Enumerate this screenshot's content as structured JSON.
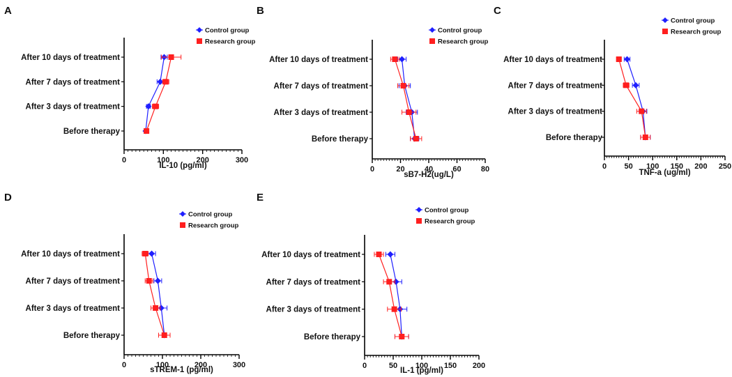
{
  "colors": {
    "control": "#1f1fff",
    "research": "#ff1f1f",
    "axis": "#000000"
  },
  "legend": {
    "control": "Control group",
    "research": "Research group"
  },
  "chart_data": [
    {
      "panel": "A",
      "type": "scatter",
      "orientation": "horizontal",
      "categories": [
        "After 10 days of treatment",
        "After 7 days of treatment",
        "After 3 days of treatment",
        "Before therapy"
      ],
      "xlabel": "IL-10 (pg/ml)",
      "xlim": [
        0,
        300
      ],
      "xticks": [
        0,
        100,
        200,
        300
      ],
      "legend_position": "top-right",
      "grid": false,
      "series": [
        {
          "name": "Control group",
          "marker": "diamond",
          "values": [
            102,
            92,
            62,
            55
          ],
          "errors": [
            8,
            8,
            5,
            4
          ]
        },
        {
          "name": "Research group",
          "marker": "square",
          "values": [
            120,
            106,
            80,
            57
          ],
          "errors": [
            25,
            8,
            8,
            5
          ]
        }
      ]
    },
    {
      "panel": "B",
      "type": "scatter",
      "orientation": "horizontal",
      "categories": [
        "After 10 days of treatment",
        "After 7 days of treatment",
        "After 3 days of treatment",
        "Before therapy"
      ],
      "xlabel": "sB7-H2(ug/L)",
      "xlim": [
        0,
        80
      ],
      "xticks": [
        0,
        20,
        40,
        60,
        80
      ],
      "legend_position": "top-right",
      "grid": false,
      "series": [
        {
          "name": "Control group",
          "marker": "diamond",
          "values": [
            21,
            23,
            28,
            30
          ],
          "errors": [
            3,
            4,
            4,
            3
          ]
        },
        {
          "name": "Research group",
          "marker": "square",
          "values": [
            16,
            22,
            26,
            31
          ],
          "errors": [
            3,
            4,
            5,
            4
          ]
        }
      ]
    },
    {
      "panel": "C",
      "type": "scatter",
      "orientation": "horizontal",
      "categories": [
        "After 10 days of treatment",
        "After 7 days of treatment",
        "After 3 days of treatment",
        "Before therapy"
      ],
      "xlabel": "TNF-a (ug/ml)",
      "xlim": [
        0,
        250
      ],
      "xticks": [
        0,
        50,
        100,
        150,
        200,
        250
      ],
      "legend_position": "top-right",
      "grid": false,
      "series": [
        {
          "name": "Control group",
          "marker": "diamond",
          "values": [
            47,
            65,
            80,
            85
          ],
          "errors": [
            6,
            7,
            8,
            10
          ]
        },
        {
          "name": "Research group",
          "marker": "square",
          "values": [
            30,
            45,
            77,
            85
          ],
          "errors": [
            5,
            6,
            10,
            10
          ]
        }
      ]
    },
    {
      "panel": "D",
      "type": "scatter",
      "orientation": "horizontal",
      "categories": [
        "After 10 days of treatment",
        "After 7 days of treatment",
        "After 3 days of treatment",
        "Before therapy"
      ],
      "xlabel": "sTREM-1 (pg/ml)",
      "xlim": [
        0,
        300
      ],
      "xticks": [
        0,
        100,
        200,
        300
      ],
      "legend_position": "top-right",
      "grid": false,
      "series": [
        {
          "name": "Control group",
          "marker": "diamond",
          "values": [
            72,
            88,
            97,
            105
          ],
          "errors": [
            10,
            10,
            15,
            15
          ]
        },
        {
          "name": "Research group",
          "marker": "square",
          "values": [
            55,
            65,
            82,
            105
          ],
          "errors": [
            8,
            10,
            12,
            15
          ]
        }
      ]
    },
    {
      "panel": "E",
      "type": "scatter",
      "orientation": "horizontal",
      "categories": [
        "After 10 days of treatment",
        "After 7 days of treatment",
        "After 3 days of treatment",
        "Before therapy"
      ],
      "xlabel": "IL-1 (pg/ml)",
      "xlim": [
        0,
        200
      ],
      "xticks": [
        0,
        50,
        100,
        150,
        200
      ],
      "legend_position": "top-right",
      "grid": false,
      "series": [
        {
          "name": "Control group",
          "marker": "diamond",
          "values": [
            45,
            55,
            62,
            65
          ],
          "errors": [
            8,
            10,
            12,
            12
          ]
        },
        {
          "name": "Research group",
          "marker": "square",
          "values": [
            25,
            43,
            52,
            65
          ],
          "errors": [
            8,
            10,
            12,
            12
          ]
        }
      ]
    }
  ]
}
